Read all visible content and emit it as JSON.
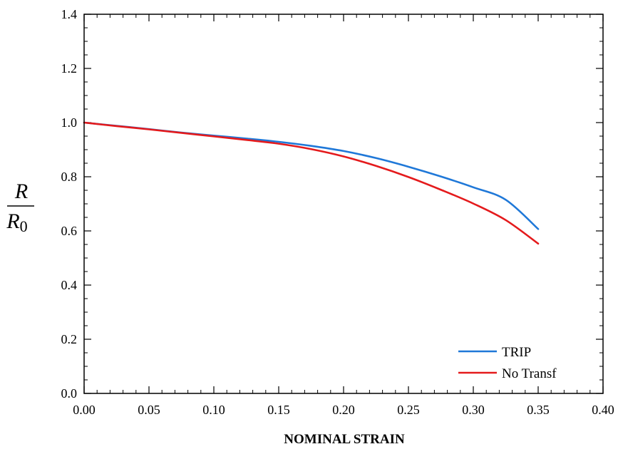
{
  "chart_data": {
    "type": "line",
    "xlabel": "NOMINAL STRAIN",
    "ylabel": {
      "main": "R",
      "denominator": "R",
      "denominator_sub": "0"
    },
    "xlim": [
      0.0,
      0.4
    ],
    "ylim": [
      0.0,
      1.4
    ],
    "xticks": [
      "0.00",
      "0.05",
      "0.10",
      "0.15",
      "0.20",
      "0.25",
      "0.30",
      "0.35",
      "0.40"
    ],
    "yticks": [
      "0.0",
      "0.2",
      "0.4",
      "0.6",
      "0.8",
      "1.0",
      "1.2",
      "1.4"
    ],
    "grid": false,
    "legend_position": "bottom-right",
    "series": [
      {
        "name": "TRIP",
        "color": "#1f78d8",
        "x": [
          0.0,
          0.025,
          0.05,
          0.075,
          0.1,
          0.125,
          0.15,
          0.175,
          0.2,
          0.225,
          0.25,
          0.275,
          0.3,
          0.325,
          0.35
        ],
        "y": [
          1.0,
          0.988,
          0.976,
          0.963,
          0.952,
          0.941,
          0.929,
          0.914,
          0.895,
          0.869,
          0.837,
          0.801,
          0.761,
          0.715,
          0.607
        ]
      },
      {
        "name": "No Transf",
        "color": "#e41a1c",
        "x": [
          0.0,
          0.025,
          0.05,
          0.075,
          0.1,
          0.125,
          0.15,
          0.175,
          0.2,
          0.225,
          0.25,
          0.275,
          0.3,
          0.325,
          0.35
        ],
        "y": [
          1.0,
          0.987,
          0.975,
          0.962,
          0.949,
          0.936,
          0.922,
          0.902,
          0.875,
          0.84,
          0.799,
          0.752,
          0.701,
          0.64,
          0.553
        ]
      }
    ]
  }
}
